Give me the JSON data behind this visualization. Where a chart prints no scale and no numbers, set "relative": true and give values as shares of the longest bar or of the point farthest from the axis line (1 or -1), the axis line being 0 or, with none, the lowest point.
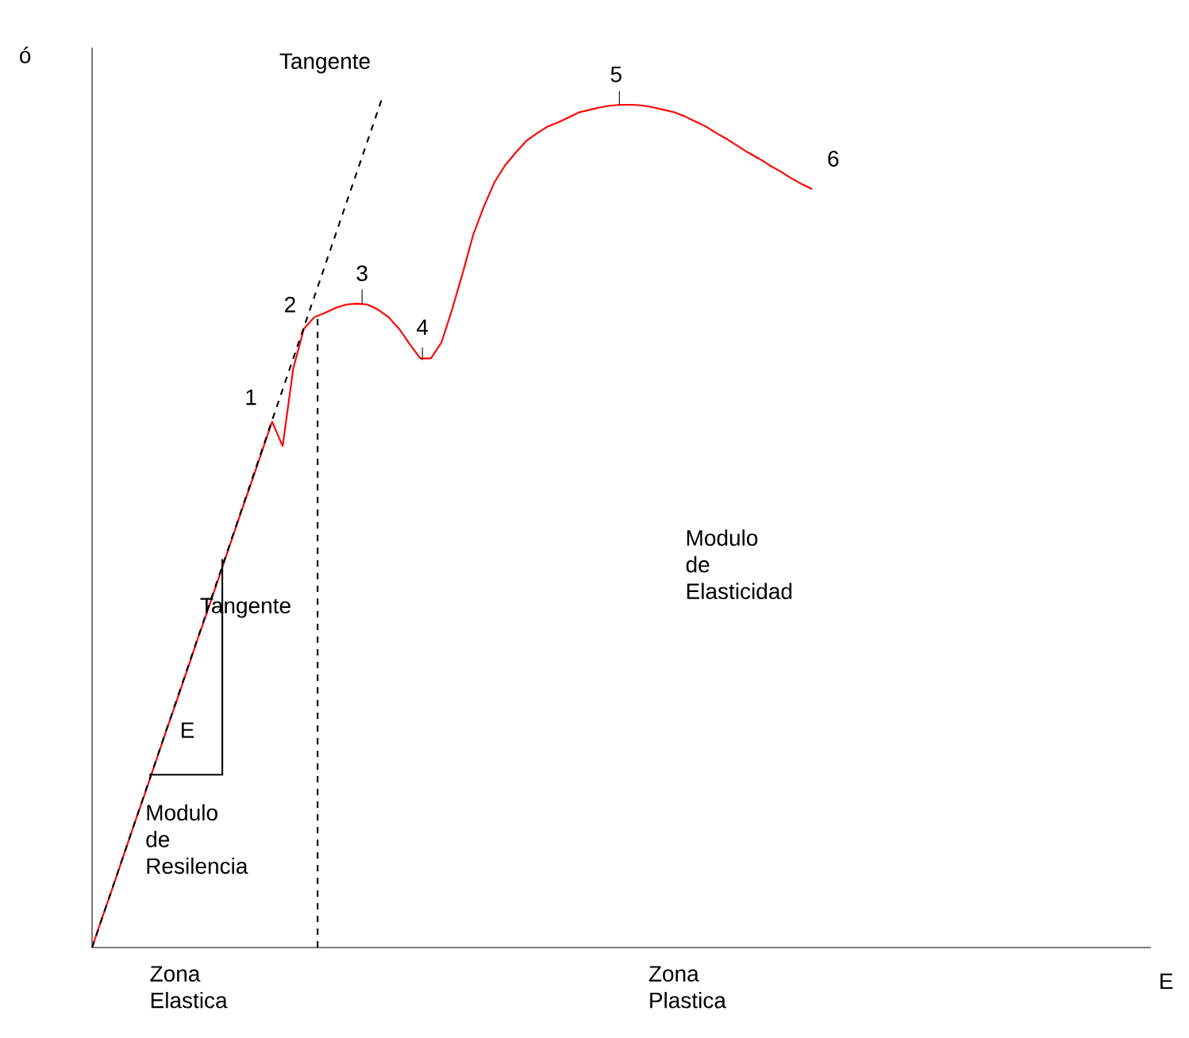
{
  "chart_data": {
    "type": "line",
    "relative": true,
    "xlabel": "E",
    "ylabel": "ó",
    "marker": "none",
    "categories": [
      null,
      null,
      null,
      null,
      null,
      null,
      null,
      null,
      null,
      null,
      null,
      null,
      null,
      null,
      null,
      null,
      null,
      null,
      null,
      null,
      null,
      null,
      null,
      null,
      null,
      null,
      null,
      null,
      null,
      null,
      null,
      null,
      null,
      null,
      null,
      null,
      null,
      null,
      null,
      null,
      null,
      null,
      null,
      null,
      null,
      null,
      null,
      null,
      null,
      null,
      null,
      null,
      null,
      null,
      null,
      null,
      null,
      null,
      null,
      null,
      null,
      null,
      null,
      null,
      null,
      null,
      null,
      null,
      null,
      null,
      null,
      null,
      null,
      null,
      null,
      null,
      null,
      null,
      null,
      null,
      null,
      null,
      null,
      null,
      null,
      null,
      null,
      null,
      null,
      null,
      null,
      null,
      null,
      null,
      null,
      null,
      null,
      null,
      null,
      null,
      null
    ],
    "series": [
      {
        "color": "#ff0000",
        "line_style": "solid",
        "values": [
          0,
          0.037,
          0.073,
          0.11,
          0.147,
          0.183,
          0.22,
          0.257,
          0.293,
          0.33,
          0.367,
          0.403,
          0.44,
          0.477,
          0.514,
          0.55,
          0.587,
          0.624,
          0.595,
          0.687,
          0.734,
          0.748,
          0.753,
          0.759,
          0.763,
          0.764,
          0.763,
          0.757,
          0.748,
          0.734,
          0.716,
          0.699,
          0.699,
          0.718,
          0.757,
          0.8,
          0.846,
          0.879,
          0.908,
          0.928,
          0.943,
          0.957,
          0.966,
          0.974,
          0.979,
          0.985,
          0.991,
          0.994,
          0.997,
          0.999,
          1.0,
          1.0,
          0.999,
          0.997,
          0.994,
          0.991,
          0.986,
          0.98,
          0.974,
          0.966,
          0.959,
          0.951,
          0.943,
          0.936,
          0.928,
          0.921,
          0.913,
          0.906,
          0.9,
          null,
          null,
          null,
          null,
          null,
          null,
          null,
          null,
          null,
          null,
          null,
          null,
          null,
          null,
          null,
          null,
          null,
          null,
          null,
          null,
          null,
          null,
          null,
          null,
          null,
          null,
          null,
          null,
          null,
          null,
          null,
          null
        ]
      }
    ],
    "annotations": [
      "1",
      "2",
      "3",
      "4",
      "5",
      "6",
      "Tangente",
      "Tangente",
      "E",
      "Modulo de Resilencia",
      "Modulo de Elasticidad",
      "Zona Elastica",
      "Zona Plastica"
    ]
  }
}
